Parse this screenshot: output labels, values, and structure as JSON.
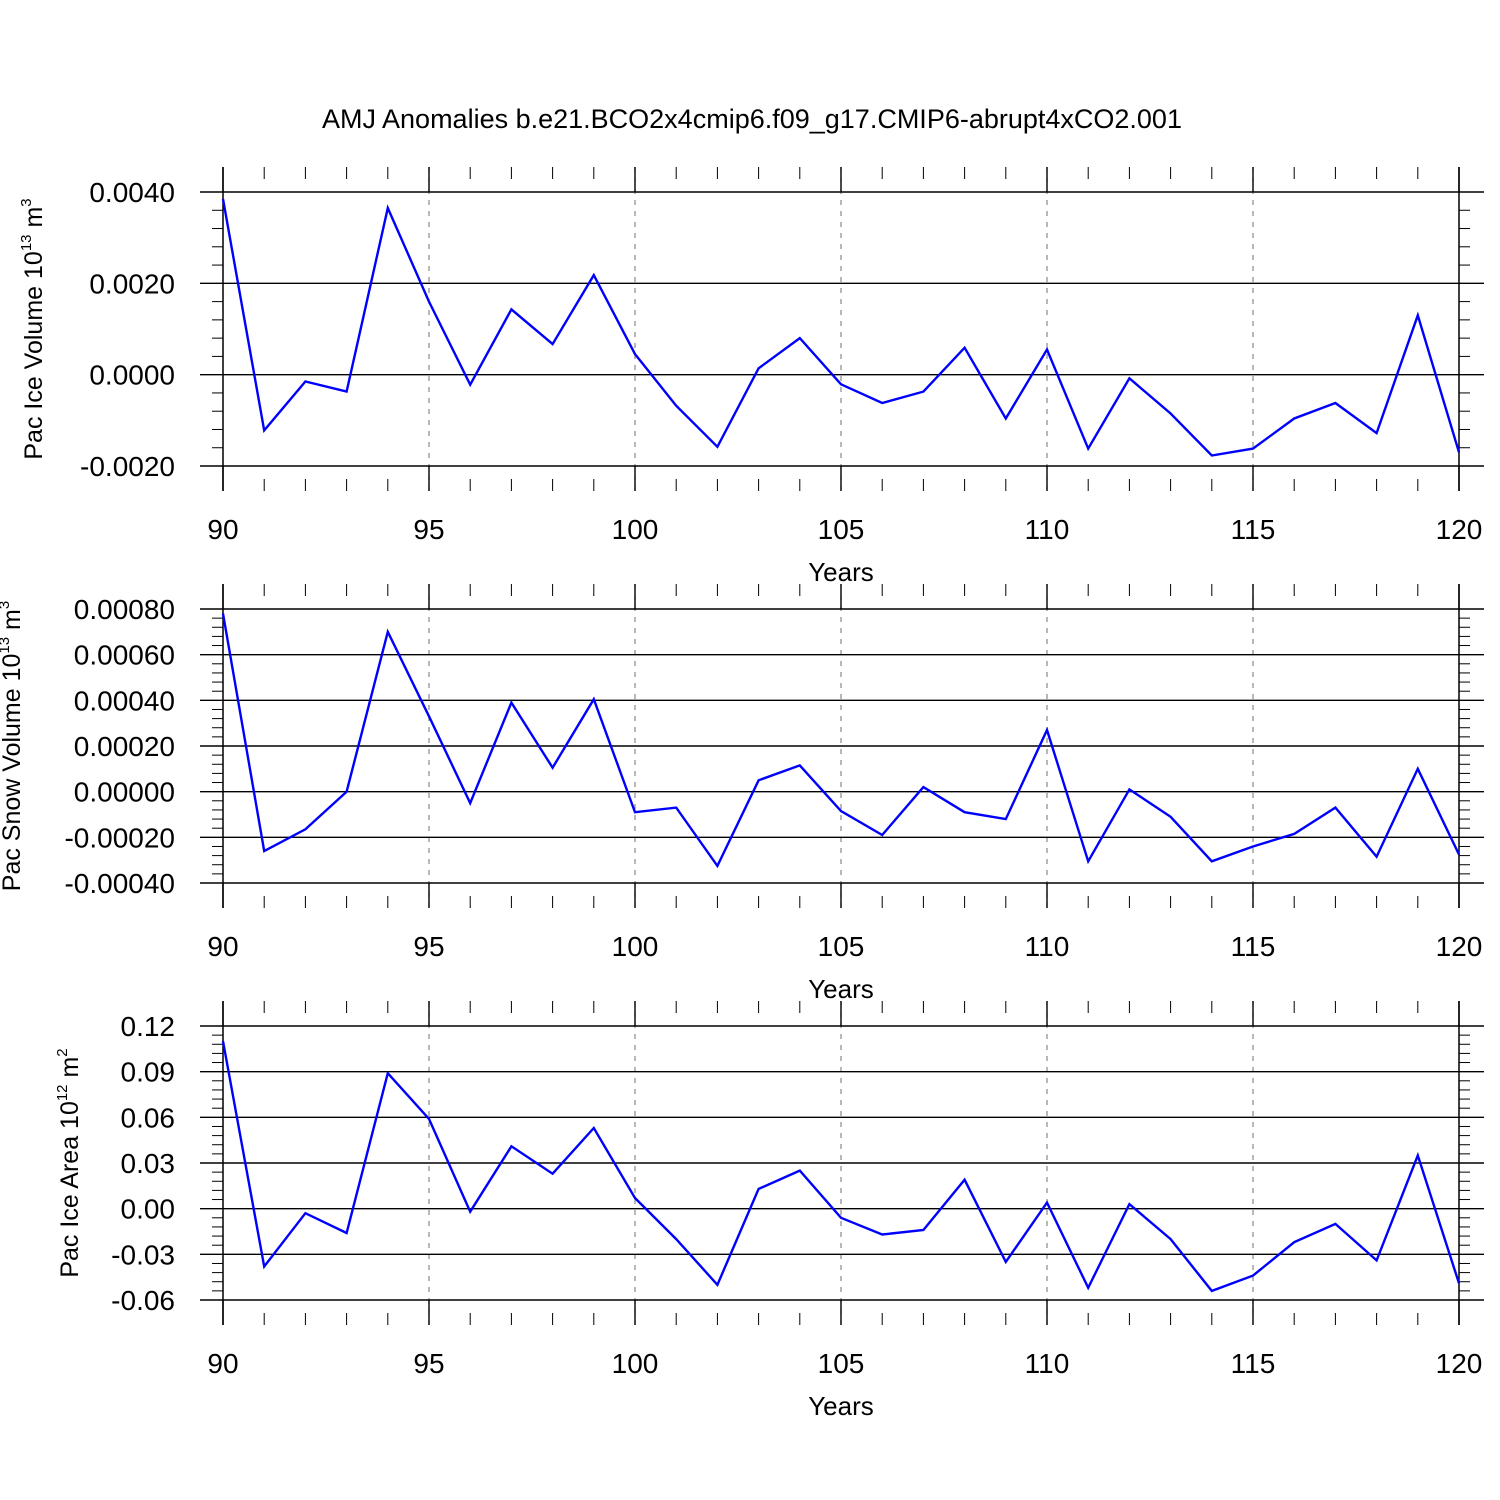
{
  "figure_title": "AMJ Anomalies b.e21.BCO2x4cmip6.f09_g17.CMIP6-abrupt4xCO2.001",
  "chart_data": [
    {
      "type": "line",
      "title": "AMJ Anomalies b.e21.BCO2x4cmip6.f09_g17.CMIP6-abrupt4xCO2.001",
      "xlabel": "Years",
      "ylabel": {
        "main": "Pac Ice Volume 10",
        "exp": "13",
        "unit": "m",
        "unit_exp": "3"
      },
      "xlim": [
        90,
        120
      ],
      "ylim": [
        -0.002,
        0.004
      ],
      "xticks": [
        90,
        95,
        100,
        105,
        110,
        115,
        120
      ],
      "xtick_labels": [
        "90",
        "95",
        "100",
        "105",
        "110",
        "115",
        "120"
      ],
      "yticks": [
        -0.002,
        0,
        0.002,
        0.004
      ],
      "ytick_labels": [
        "-0.0020",
        "0.0000",
        "0.0020",
        "0.0040"
      ],
      "grid": "vertical-dashed",
      "line_color": "#0000ff",
      "x": [
        90,
        91,
        92,
        93,
        94,
        95,
        96,
        97,
        98,
        99,
        100,
        101,
        102,
        103,
        104,
        105,
        106,
        107,
        108,
        109,
        110,
        111,
        112,
        113,
        114,
        115,
        116,
        117,
        118,
        119,
        120
      ],
      "values": [
        0.00385,
        -0.00122,
        -0.00015,
        -0.00037,
        0.00365,
        0.0016,
        -0.00022,
        0.00143,
        0.00067,
        0.00218,
        0.00045,
        -0.00068,
        -0.00158,
        0.00014,
        0.0008,
        -0.00021,
        -0.00062,
        -0.00037,
        0.00059,
        -0.00096,
        0.00055,
        -0.00162,
        -8e-05,
        -0.00085,
        -0.00177,
        -0.00162,
        -0.00096,
        -0.00062,
        -0.00128,
        0.0013,
        -0.0017
      ]
    },
    {
      "type": "line",
      "xlabel": "Years",
      "ylabel": {
        "main": "Pac Snow Volume 10",
        "exp": "13",
        "unit": "m",
        "unit_exp": "3"
      },
      "xlim": [
        90,
        120
      ],
      "ylim": [
        -0.0004,
        0.0008
      ],
      "xticks": [
        90,
        95,
        100,
        105,
        110,
        115,
        120
      ],
      "xtick_labels": [
        "90",
        "95",
        "100",
        "105",
        "110",
        "115",
        "120"
      ],
      "yticks": [
        -0.0004,
        -0.0002,
        0,
        0.0002,
        0.0004,
        0.0006,
        0.0008
      ],
      "ytick_labels": [
        "-0.00040",
        "-0.00020",
        "0.00000",
        "0.00020",
        "0.00040",
        "0.00060",
        "0.00080"
      ],
      "grid": "vertical-dashed",
      "line_color": "#0000ff",
      "x": [
        90,
        91,
        92,
        93,
        94,
        95,
        96,
        97,
        98,
        99,
        100,
        101,
        102,
        103,
        104,
        105,
        106,
        107,
        108,
        109,
        110,
        111,
        112,
        113,
        114,
        115,
        116,
        117,
        118,
        119,
        120
      ],
      "values": [
        0.00078,
        -0.00026,
        -0.000165,
        0.0,
        0.0007,
        0.00033,
        -5e-05,
        0.00039,
        0.000105,
        0.000405,
        -9e-05,
        -7e-05,
        -0.000325,
        5e-05,
        0.000115,
        -8.5e-05,
        -0.00019,
        2e-05,
        -9e-05,
        -0.00012,
        0.00027,
        -0.000305,
        1e-05,
        -0.00011,
        -0.000305,
        -0.00024,
        -0.000185,
        -7e-05,
        -0.000285,
        0.0001,
        -0.000275
      ]
    },
    {
      "type": "line",
      "xlabel": "Years",
      "ylabel": {
        "main": "Pac Ice Area 10",
        "exp": "12",
        "unit": "m",
        "unit_exp": "2"
      },
      "xlim": [
        90,
        120
      ],
      "ylim": [
        -0.06,
        0.12
      ],
      "xticks": [
        90,
        95,
        100,
        105,
        110,
        115,
        120
      ],
      "xtick_labels": [
        "90",
        "95",
        "100",
        "105",
        "110",
        "115",
        "120"
      ],
      "yticks": [
        -0.06,
        -0.03,
        0,
        0.03,
        0.06,
        0.09,
        0.12
      ],
      "ytick_labels": [
        "-0.06",
        "-0.03",
        "0.00",
        "0.03",
        "0.06",
        "0.09",
        "0.12"
      ],
      "grid": "vertical-dashed",
      "line_color": "#0000ff",
      "x": [
        90,
        91,
        92,
        93,
        94,
        95,
        96,
        97,
        98,
        99,
        100,
        101,
        102,
        103,
        104,
        105,
        106,
        107,
        108,
        109,
        110,
        111,
        112,
        113,
        114,
        115,
        116,
        117,
        118,
        119,
        120
      ],
      "values": [
        0.11,
        -0.038,
        -0.003,
        -0.016,
        0.089,
        0.059,
        -0.002,
        0.041,
        0.023,
        0.053,
        0.007,
        -0.02,
        -0.05,
        0.013,
        0.025,
        -0.006,
        -0.017,
        -0.014,
        0.019,
        -0.035,
        0.004,
        -0.052,
        0.003,
        -0.02,
        -0.054,
        -0.044,
        -0.022,
        -0.01,
        -0.034,
        0.035,
        -0.049
      ]
    }
  ]
}
